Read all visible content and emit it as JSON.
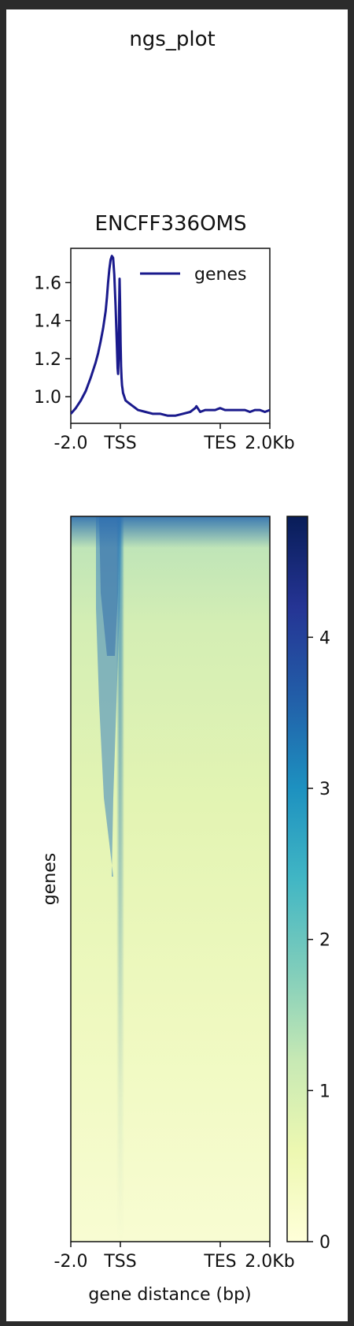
{
  "figure": {
    "title": "ngs_plot"
  },
  "chart_data": [
    {
      "type": "line",
      "title": "ENCFF336OMS",
      "xlabel": "",
      "ylabel": "",
      "x_ticks": [
        "-2.0",
        "TSS",
        "TES",
        "2.0Kb"
      ],
      "y_ticks": [
        1.0,
        1.2,
        1.4,
        1.6
      ],
      "ylim": [
        0.86,
        1.78
      ],
      "legend": {
        "position": "top-right",
        "entries": [
          "genes"
        ]
      },
      "series": [
        {
          "name": "genes",
          "color": "#1a1a8c",
          "x": [
            -2000,
            -1800,
            -1600,
            -1400,
            -1200,
            -1000,
            -900,
            -800,
            -700,
            -600,
            -550,
            -500,
            -450,
            -400,
            -350,
            -300,
            -250,
            -200,
            -150,
            -120,
            -100,
            -80,
            -60,
            -40,
            -20,
            0,
            20,
            40,
            60,
            80,
            100,
            150,
            200,
            300,
            400,
            500,
            700,
            1000,
            1300,
            1600,
            1900,
            2200,
            2500,
            2800,
            3000,
            3050,
            3100,
            3200,
            3400,
            3600,
            3800,
            4000,
            4200,
            4400,
            4600,
            4800,
            5000,
            5200,
            5400,
            5600,
            5800,
            6000
          ],
          "y": [
            0.91,
            0.94,
            0.98,
            1.03,
            1.1,
            1.18,
            1.23,
            1.29,
            1.36,
            1.45,
            1.52,
            1.6,
            1.67,
            1.72,
            1.74,
            1.73,
            1.64,
            1.48,
            1.28,
            1.15,
            1.12,
            1.2,
            1.45,
            1.62,
            1.5,
            1.28,
            1.16,
            1.1,
            1.06,
            1.04,
            1.02,
            1.0,
            0.98,
            0.97,
            0.96,
            0.95,
            0.93,
            0.92,
            0.91,
            0.91,
            0.9,
            0.9,
            0.91,
            0.92,
            0.94,
            0.95,
            0.94,
            0.92,
            0.93,
            0.93,
            0.93,
            0.94,
            0.93,
            0.93,
            0.93,
            0.93,
            0.93,
            0.92,
            0.93,
            0.93,
            0.92,
            0.93
          ]
        }
      ]
    },
    {
      "type": "heatmap",
      "xlabel": "gene distance (bp)",
      "ylabel": "genes",
      "x_ticks": [
        "-2.0",
        "TSS",
        "TES",
        "2.0Kb"
      ],
      "colormap": "YlGnBu",
      "colorbar_ticks": [
        0,
        1,
        2,
        3,
        4
      ],
      "colorbar_range": [
        0,
        4.8
      ]
    }
  ]
}
